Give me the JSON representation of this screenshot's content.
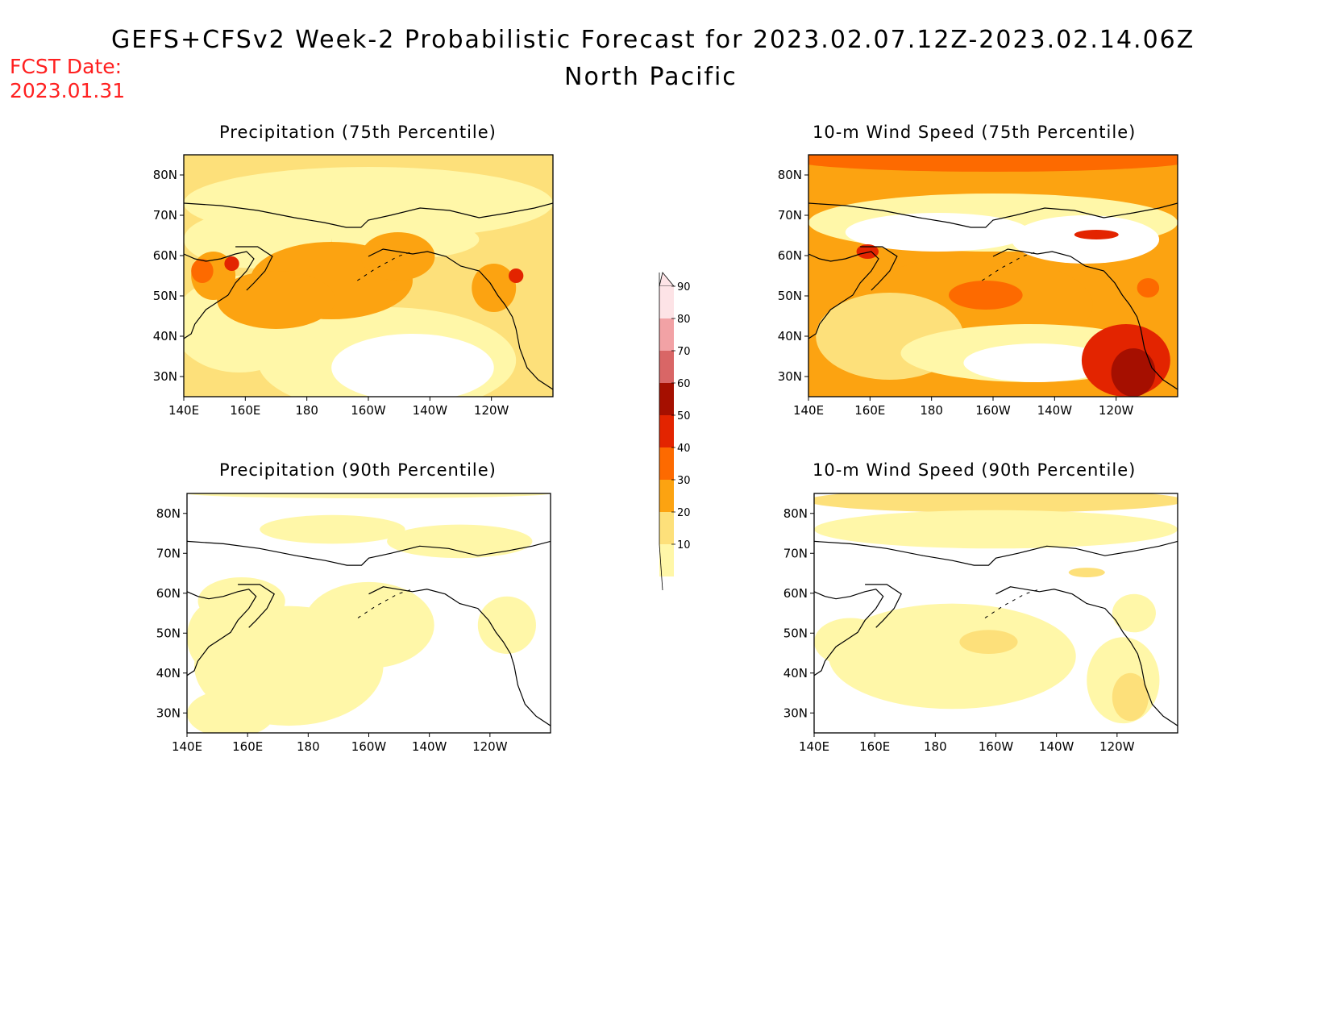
{
  "title": "GEFS+CFSv2 Week-2 Probabilistic Forecast for 2023.02.07.12Z-2023.02.14.06Z",
  "subtitle": "North Pacific",
  "fcst_label": "FCST Date:",
  "fcst_date": "2023.01.31",
  "panels": [
    {
      "title": "Precipitation (75th Percentile)"
    },
    {
      "title": "10-m Wind Speed (75th Percentile)"
    },
    {
      "title": "Precipitation (90th Percentile)"
    },
    {
      "title": "10-m Wind Speed (90th Percentile)"
    }
  ],
  "axes": {
    "lon_labels": [
      "140E",
      "160E",
      "180",
      "160W",
      "140W",
      "120W"
    ],
    "lat_labels": [
      "80N",
      "70N",
      "60N",
      "50N",
      "40N",
      "30N"
    ]
  },
  "colorbar": {
    "levels": [
      "10",
      "20",
      "30",
      "40",
      "50",
      "60",
      "70",
      "80",
      "90"
    ],
    "colors": [
      "#fff7a8",
      "#fde07a",
      "#fca311",
      "#fd6a00",
      "#e32400",
      "#a50f00",
      "#d96666",
      "#f2a2a5",
      "#fde3e6"
    ]
  }
}
